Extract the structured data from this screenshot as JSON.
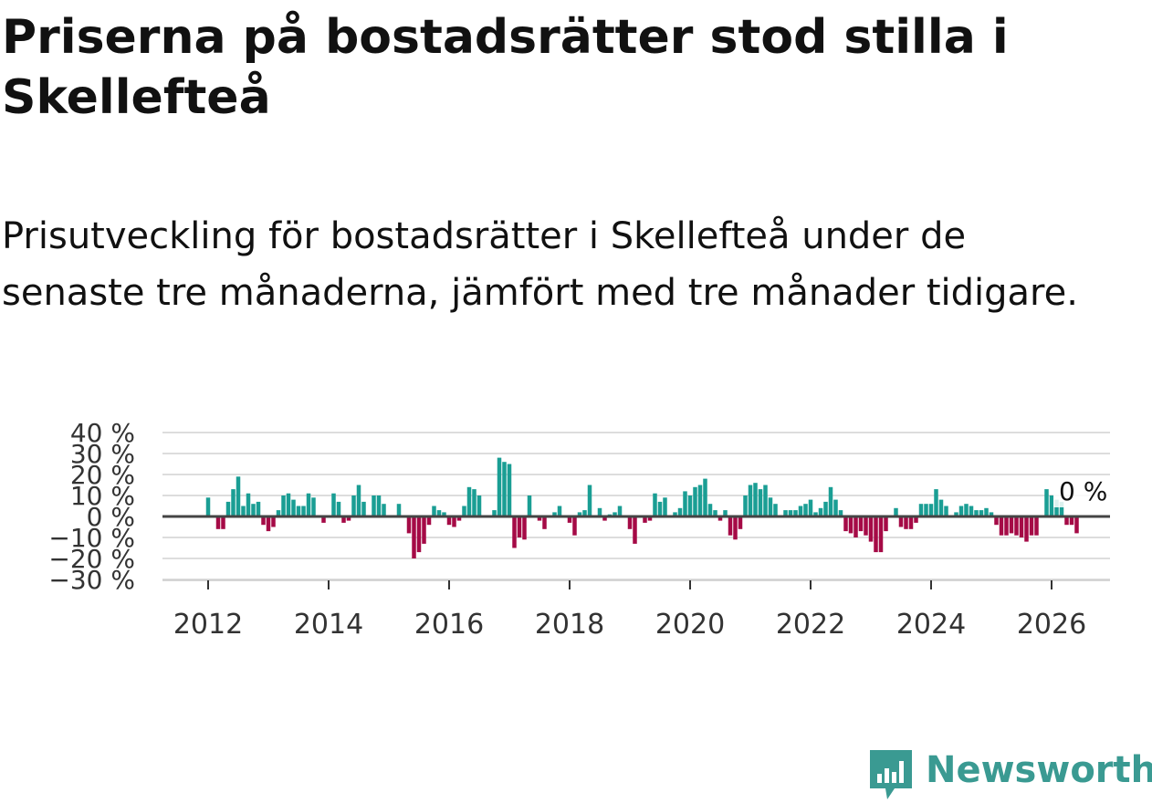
{
  "title": "Priserna på bostadsrätter stod stilla i Skellefteå",
  "subtitle": "Prisutveckling för bostadsrätter i Skellefteå under de senaste tre månaderna, jämfört med tre månader tidigare.",
  "brand": {
    "name": "Newsworthy",
    "color": "#3a9a92"
  },
  "colors": {
    "positive": "#1a9e94",
    "negative": "#a50a46",
    "grid": "#dddddd",
    "zero": "#444444"
  },
  "chart_data": {
    "type": "bar",
    "title": "Priserna på bostadsrätter stod stilla i Skellefteå",
    "xlabel": "",
    "ylabel": "",
    "ylim": [
      -30,
      40
    ],
    "yticks": [
      -30,
      -20,
      -10,
      0,
      10,
      20,
      30,
      40
    ],
    "ytick_labels": [
      "−30 %",
      "−20 %",
      "−10 %",
      "0 %",
      "10 %",
      "20 %",
      "30 %",
      "40 %"
    ],
    "xticks": [
      2012,
      2014,
      2016,
      2018,
      2020,
      2022,
      2024,
      2026
    ],
    "xtick_labels": [
      "2012",
      "2014",
      "2016",
      "2018",
      "2020",
      "2022",
      "2024",
      "2026"
    ],
    "x_start": "2012-01",
    "x_step": "month",
    "grid": true,
    "annotation": {
      "label": "0 %",
      "value": 0,
      "month_index": 168
    },
    "values": [
      9,
      0,
      -6,
      -6,
      7,
      13,
      19,
      5,
      11,
      6,
      7,
      -4,
      -7,
      -5,
      3,
      10,
      11,
      8,
      5,
      5,
      11,
      9,
      0,
      -3,
      0,
      11,
      7,
      -3,
      -2,
      10,
      15,
      7,
      0,
      10,
      10,
      6,
      0,
      0,
      6,
      0,
      -8,
      -20,
      -17,
      -13,
      -4,
      5,
      3,
      2,
      -4,
      -5,
      -2,
      5,
      14,
      13,
      10,
      0,
      0,
      3,
      28,
      26,
      25,
      -15,
      -10,
      -11,
      10,
      0,
      -2,
      -6,
      0,
      2,
      5,
      0,
      -3,
      -9,
      2,
      3,
      15,
      0,
      4,
      -2,
      1,
      2,
      5,
      0,
      -6,
      -13,
      0,
      -3,
      -2,
      11,
      7,
      9,
      0,
      2,
      4,
      12,
      10,
      14,
      15,
      18,
      6,
      3,
      -2,
      3,
      -9,
      -11,
      -6,
      10,
      15,
      16,
      13,
      15,
      9,
      6,
      0,
      3,
      3,
      3,
      5,
      6,
      8,
      2,
      4,
      7,
      14,
      8,
      3,
      -7,
      -8,
      -10,
      -7,
      -9,
      -12,
      -17,
      -17,
      -7,
      0,
      4,
      -5,
      -6,
      -6,
      -3,
      6,
      6,
      6,
      13,
      8,
      5,
      0,
      2,
      5,
      6,
      5,
      3,
      3,
      4,
      2,
      -4,
      -9,
      -9,
      -8,
      -9,
      -10,
      -12,
      -9,
      -9,
      0,
      13,
      10,
      8,
      7,
      -4,
      -4,
      -8,
      0
    ]
  }
}
